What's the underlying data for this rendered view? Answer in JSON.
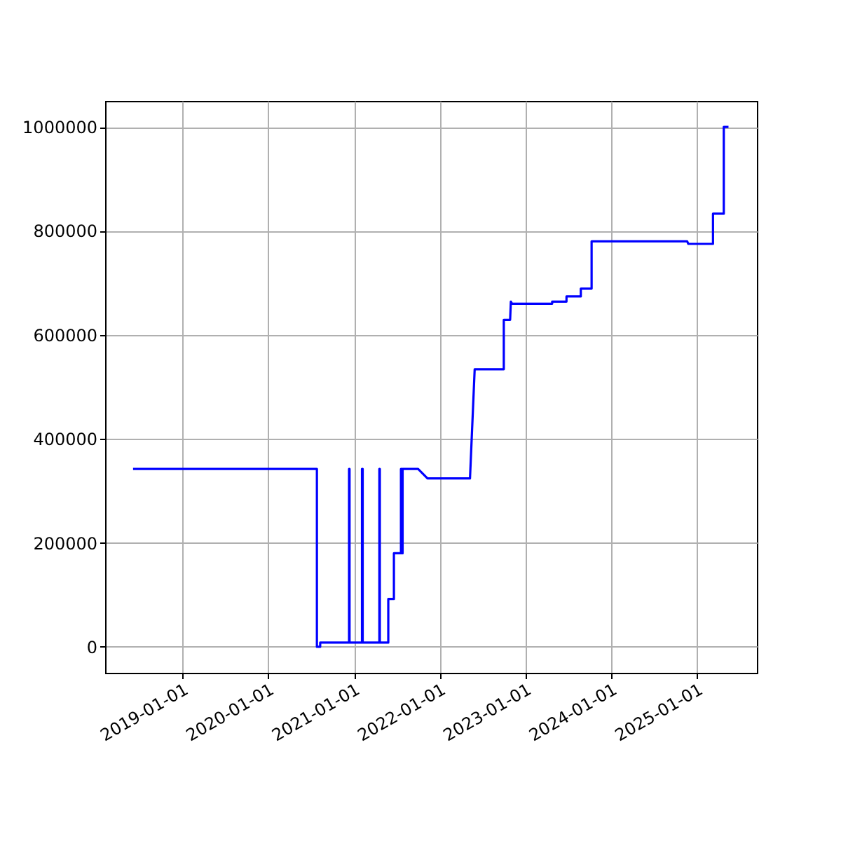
{
  "chart_data": {
    "type": "line",
    "x": [
      "2018-06-05",
      "2020-07-27",
      "2020-07-27",
      "2020-08-10",
      "2020-08-10",
      "2020-12-11",
      "2020-12-11",
      "2020-12-13",
      "2020-12-13",
      "2021-02-04",
      "2021-02-04",
      "2021-02-07",
      "2021-02-07",
      "2021-04-19",
      "2021-04-19",
      "2021-04-21",
      "2021-04-21",
      "2021-05-27",
      "2021-05-27",
      "2021-06-20",
      "2021-06-20",
      "2021-07-20",
      "2021-07-20",
      "2021-07-24",
      "2021-07-24",
      "2021-07-27",
      "2021-07-27",
      "2021-10-01",
      "2021-11-10",
      "2022-05-10",
      "2022-05-30",
      "2022-10-01",
      "2022-10-01",
      "2022-10-28",
      "2022-10-31",
      "2022-11-05",
      "2023-04-25",
      "2023-04-25",
      "2023-06-25",
      "2023-06-25",
      "2023-08-25",
      "2023-08-25",
      "2023-10-10",
      "2023-10-10",
      "2024-11-20",
      "2024-11-25",
      "2025-03-10",
      "2025-03-10",
      "2025-04-25",
      "2025-04-25",
      "2025-05-15"
    ],
    "series": [
      {
        "color": "#0000ff",
        "values": [
          342000,
          342000,
          0,
          0,
          8000,
          8000,
          342000,
          342000,
          8000,
          8000,
          342000,
          342000,
          8000,
          8000,
          342000,
          342000,
          8000,
          8000,
          92000,
          92000,
          180000,
          180000,
          342000,
          342000,
          180000,
          180000,
          342000,
          342000,
          324000,
          324000,
          534000,
          534000,
          629000,
          629000,
          664000,
          660000,
          660000,
          664000,
          664000,
          674000,
          674000,
          689000,
          689000,
          780000,
          780000,
          775000,
          775000,
          833000,
          833000,
          1000000,
          1000000
        ]
      }
    ],
    "xlim": [
      "2018-02-06",
      "2025-09-13"
    ],
    "xticks": [
      "2019-01-01",
      "2020-01-01",
      "2021-01-01",
      "2022-01-01",
      "2023-01-01",
      "2024-01-01",
      "2025-01-01"
    ],
    "ylim": [
      -50000,
      1050000
    ],
    "yticks": [
      0,
      200000,
      400000,
      600000,
      800000,
      1000000
    ],
    "grid": true
  }
}
